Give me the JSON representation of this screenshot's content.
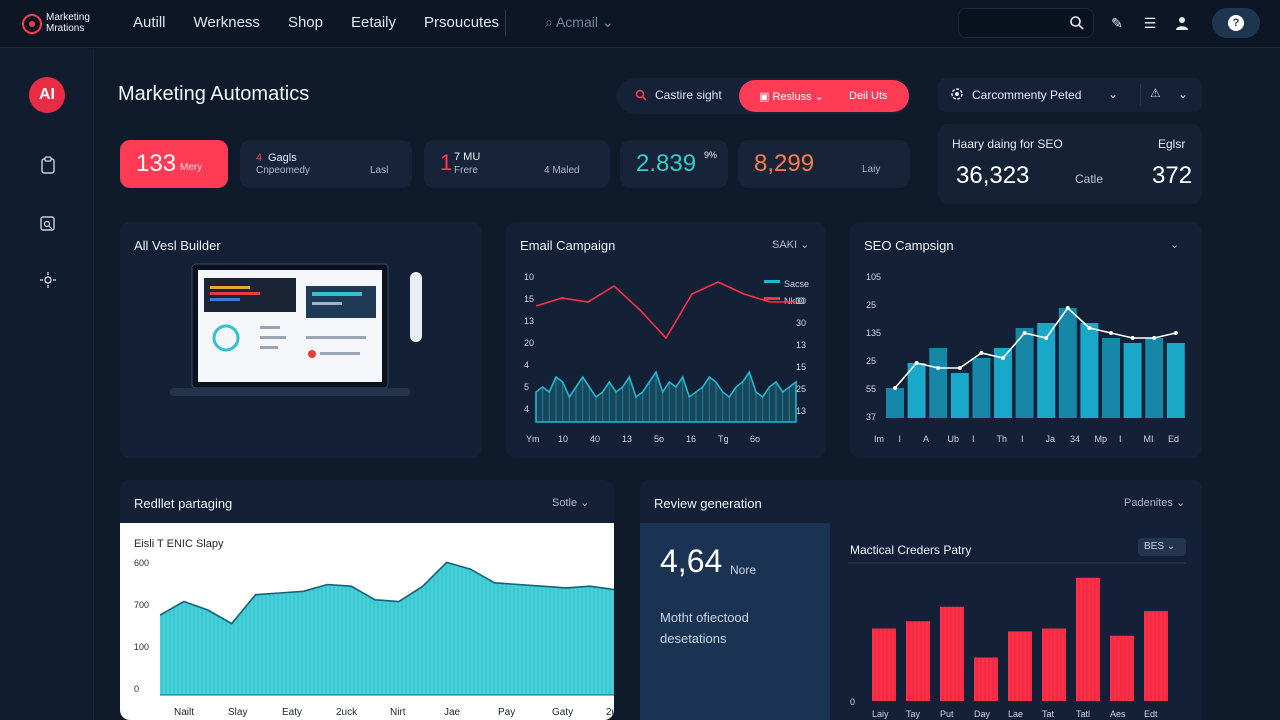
{
  "brand": {
    "logo_text": "Marketing Mrations",
    "logo_icon": "target-icon"
  },
  "nav": {
    "items": [
      "Autill",
      "Werkness",
      "Shop",
      "Eetaily",
      "Prsoucutes"
    ],
    "select_label": "Acmail"
  },
  "topbar": {
    "search_icon": "search-icon",
    "icons": [
      "pencil-icon",
      "list-icon",
      "user-icon"
    ],
    "help_label": "?"
  },
  "sidebar": {
    "badge": "AI",
    "icons": [
      "clipboard-icon",
      "image-search-icon",
      "settings-sparkle-icon"
    ]
  },
  "page": {
    "title": "Marketing Automatics"
  },
  "toolbar": {
    "search_label": "Castire sight",
    "filter_label": "Resluss",
    "action_label": "Deil Uts"
  },
  "community": {
    "label": "Carcommenty Peted",
    "icon": "gear-icon"
  },
  "kpis": [
    {
      "value": "133",
      "sub": "Mery"
    },
    {
      "value": "4",
      "label": "Gagls",
      "sub": "Cnpeomedy",
      "extra": "Lasl"
    },
    {
      "value": "1",
      "label": "7 MU",
      "sub": "Frere",
      "extra": "4 Maled"
    },
    {
      "value": "2.839",
      "sup": "9%"
    },
    {
      "value": "8,299",
      "sub": "Laiy"
    }
  ],
  "seo_summary": {
    "title": "Haary daing for SEO",
    "right_title": "Eglsr",
    "value": "36,323",
    "mid": "Catle",
    "right_value": "372"
  },
  "panels": {
    "builder": {
      "title": "All Vesl Builder"
    },
    "email": {
      "title": "Email Campaign",
      "dropdown": "SAKI",
      "legend": [
        "Sacse",
        "NkIO"
      ],
      "y_left": [
        "10",
        "15",
        "13",
        "20",
        "4",
        "5",
        "4"
      ],
      "y_right": [
        "30",
        "30",
        "13",
        "15",
        "25",
        "13"
      ],
      "x_labels": [
        "Ym",
        "10",
        "40",
        "13",
        "5o",
        "16",
        "Tg",
        "6o"
      ],
      "colors": {
        "series_a": "#22b8d1",
        "series_b": "#ff2f48"
      }
    },
    "seo": {
      "title": "SEO Campsign",
      "y_labels": [
        "105",
        "25",
        "135",
        "25",
        "55",
        "37"
      ],
      "x_labels": [
        "Im",
        "I",
        "A",
        "Ub",
        "I",
        "Th",
        "I",
        "Ja",
        "34",
        "Mp",
        "I",
        "MI",
        "Ed"
      ]
    },
    "redlet": {
      "title": "Redllet partaging",
      "dropdown": "Sotle",
      "inner_title": "Eisli T ENIC Slapy",
      "y_labels": [
        "600",
        "700",
        "100",
        "0"
      ],
      "x_labels": [
        "Nailt",
        "Slay",
        "Eaty",
        "2uck",
        "Nirt",
        "Jae",
        "Pay",
        "Gaty",
        "2ue"
      ]
    },
    "review": {
      "title": "Review generation",
      "dropdown": "Padenites",
      "value": "4,64",
      "unit": "Nore",
      "desc": "Motht ofiectood desetations",
      "chart_title": "Mactical Creders Patry",
      "chart_dd": "BES",
      "y_zero": "0",
      "x_labels": [
        "Laiy",
        "Tay",
        "Put",
        "Day",
        "Lae",
        "Tat",
        "Tatl",
        "Aes",
        "Edt"
      ]
    }
  },
  "chart_data": [
    {
      "type": "line",
      "title": "Email Campaign",
      "series": [
        {
          "name": "Sacse",
          "values": [
            6,
            7,
            6,
            9,
            8,
            5,
            7,
            9,
            7,
            5,
            6,
            8,
            6,
            7,
            9,
            5,
            6,
            8,
            10,
            6,
            8,
            7,
            9,
            5,
            6,
            7,
            9,
            8,
            6,
            5,
            7,
            8,
            10,
            6,
            5,
            7,
            8,
            6,
            7,
            8
          ]
        },
        {
          "name": "NkIO",
          "values": [
            25,
            27,
            26,
            30,
            24,
            17,
            28,
            31,
            28,
            26,
            26
          ]
        }
      ]
    },
    {
      "type": "bar",
      "title": "SEO Campsign",
      "values": [
        30,
        55,
        70,
        45,
        60,
        70,
        90,
        95,
        110,
        95,
        80,
        75,
        80,
        75
      ],
      "line": [
        30,
        55,
        50,
        50,
        65,
        60,
        85,
        80,
        110,
        90,
        85,
        80,
        80,
        85
      ]
    },
    {
      "type": "area",
      "title": "Eisli T ENIC Slapy",
      "values": [
        470,
        550,
        500,
        420,
        590,
        600,
        610,
        650,
        640,
        560,
        550,
        640,
        780,
        740,
        660,
        650,
        640,
        630,
        640,
        620
      ],
      "ylim": [
        0,
        800
      ]
    },
    {
      "type": "bar",
      "title": "Mactical Creders Patry",
      "values": [
        50,
        55,
        65,
        30,
        48,
        50,
        85,
        45,
        62
      ],
      "ylim": [
        0,
        100
      ]
    }
  ]
}
